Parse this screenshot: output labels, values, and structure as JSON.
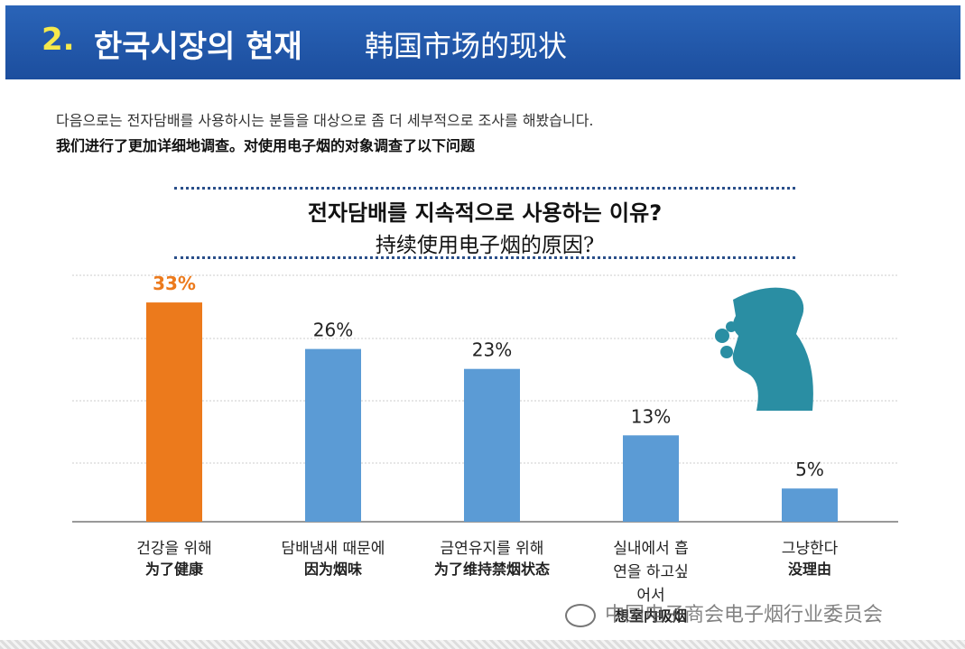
{
  "header": {
    "number": "2.",
    "title_ko": "한국시장의 현재",
    "title_zh": "韩国市场的现状"
  },
  "intro": [
    "다음으로는 전자담배를 사용하시는 분들을 대상으로 좀 더 세부적으로 조사를 해봤습니다.",
    "我们进行了更加详细地调查。对使用电子烟的对象调查了以下问题"
  ],
  "chart_data": {
    "type": "bar",
    "title": "전자담배를 지속적으로 사용하는 이유?",
    "subtitle": "持续使用电子烟的原因?",
    "categories": [
      "건강을 위해",
      "담배냄새 때문에",
      "금연유지를 위해",
      "실내에서 흡연을 하고싶어서",
      "그냥한다"
    ],
    "category_translations": [
      "为了健康",
      "因为烟味",
      "为了维持禁烟状态",
      "想室内吸烟",
      "没理由"
    ],
    "values": [
      33,
      26,
      23,
      13,
      5
    ],
    "value_labels": [
      "33%",
      "26%",
      "23%",
      "13%",
      "5%"
    ],
    "colors": [
      "#ec7a1c",
      "#5b9bd5",
      "#5b9bd5",
      "#5b9bd5",
      "#5b9bd5"
    ],
    "ylim": [
      0,
      36
    ]
  },
  "watermark": "中国电子商会电子烟行业委员会"
}
